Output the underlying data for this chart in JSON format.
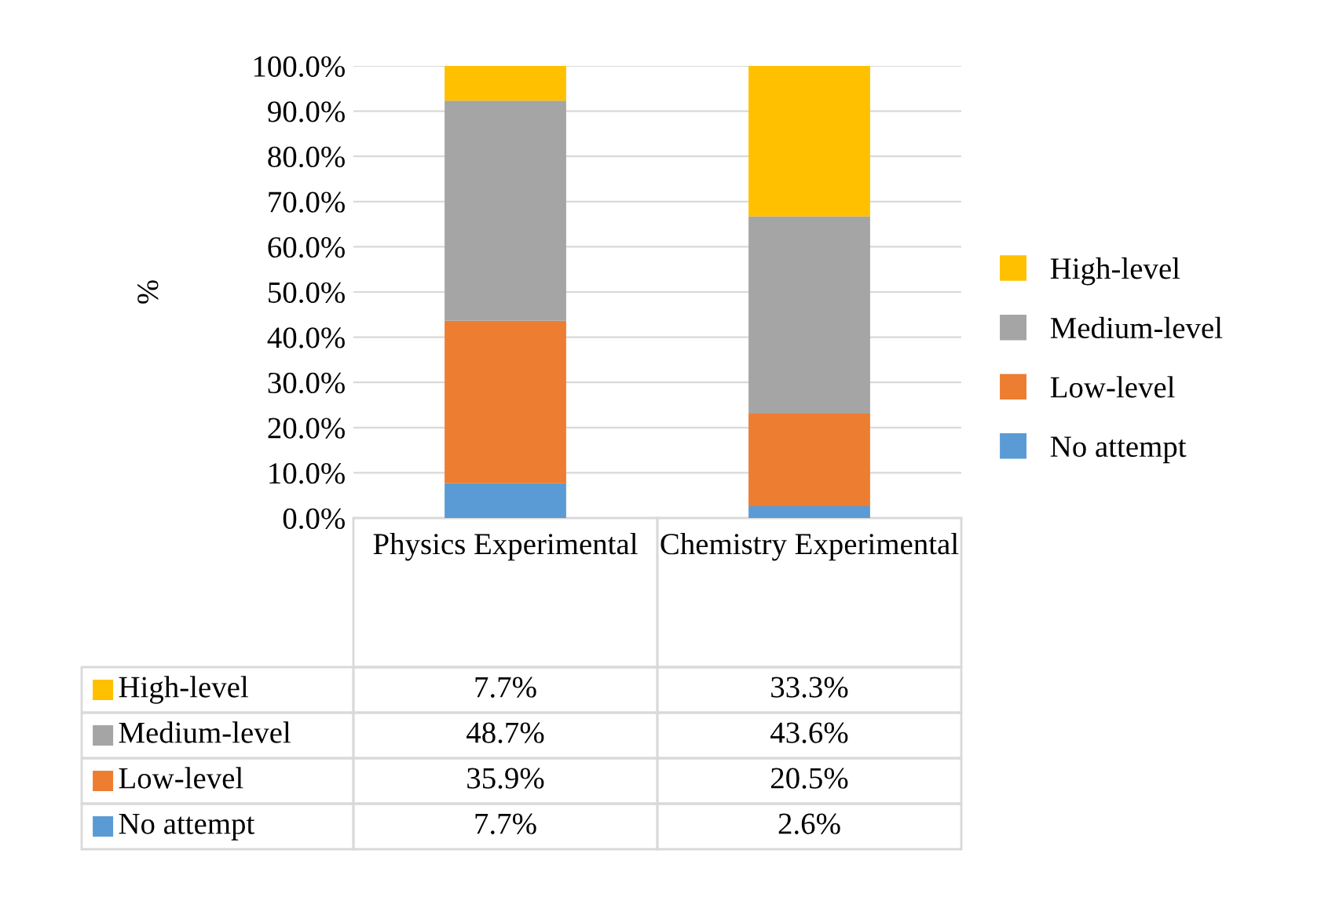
{
  "chart_data": {
    "type": "bar",
    "stacked": true,
    "ylabel": "%",
    "categories": [
      "Physics Experimental",
      "Chemistry Experimental"
    ],
    "series": [
      {
        "name": "No attempt",
        "color": "#5b9bd5",
        "values": [
          7.7,
          2.6
        ],
        "value_labels": [
          "7.7%",
          "2.6%"
        ]
      },
      {
        "name": "Low-level",
        "color": "#ed7d31",
        "values": [
          35.9,
          20.5
        ],
        "value_labels": [
          "35.9%",
          "20.5%"
        ]
      },
      {
        "name": "Medium-level",
        "color": "#a5a5a5",
        "values": [
          48.7,
          43.6
        ],
        "value_labels": [
          "48.7%",
          "43.6%"
        ]
      },
      {
        "name": "High-level",
        "color": "#ffc000",
        "values": [
          7.7,
          33.3
        ],
        "value_labels": [
          "7.7%",
          "33.3%"
        ]
      }
    ],
    "ylim": [
      0,
      100
    ],
    "yticks": [
      {
        "value": 0,
        "label": "0.0%"
      },
      {
        "value": 10,
        "label": "10.0%"
      },
      {
        "value": 20,
        "label": "20.0%"
      },
      {
        "value": 30,
        "label": "30.0%"
      },
      {
        "value": 40,
        "label": "40.0%"
      },
      {
        "value": 50,
        "label": "50.0%"
      },
      {
        "value": 60,
        "label": "60.0%"
      },
      {
        "value": 70,
        "label": "70.0%"
      },
      {
        "value": 80,
        "label": "80.0%"
      },
      {
        "value": 90,
        "label": "90.0%"
      },
      {
        "value": 100,
        "label": "100.0%"
      }
    ],
    "legend": "right",
    "grid": "y"
  }
}
